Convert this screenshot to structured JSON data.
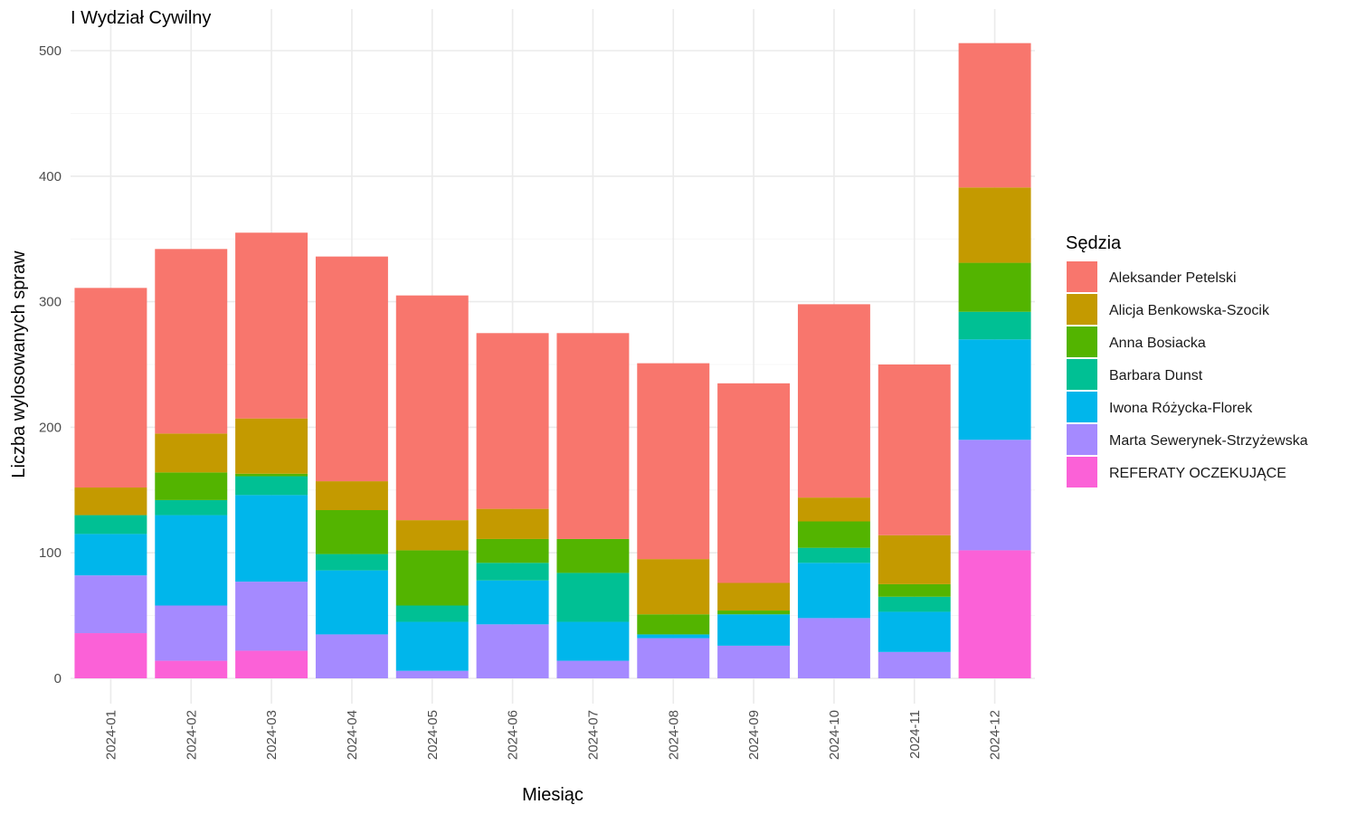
{
  "chart_data": {
    "type": "bar",
    "stacked": true,
    "title": "I Wydział Cywilny",
    "xlabel": "Miesiąc",
    "ylabel": "Liczba wylosowanych spraw",
    "ylim": [
      0,
      510
    ],
    "yticks": [
      0,
      100,
      200,
      300,
      400,
      500
    ],
    "grid": true,
    "legend_position": "right",
    "legend_title": "Sędzia",
    "categories": [
      "2024-01",
      "2024-02",
      "2024-03",
      "2024-04",
      "2024-05",
      "2024-06",
      "2024-07",
      "2024-08",
      "2024-09",
      "2024-10",
      "2024-11",
      "2024-12"
    ],
    "series": [
      {
        "name": "Aleksander Petelski",
        "color": "#F8766D",
        "values": [
          159,
          147,
          148,
          179,
          179,
          140,
          164,
          156,
          159,
          154,
          136,
          115
        ]
      },
      {
        "name": "Alicja Benkowska-Szocik",
        "color": "#C49A00",
        "values": [
          22,
          31,
          44,
          23,
          24,
          24,
          0,
          44,
          22,
          19,
          39,
          60
        ]
      },
      {
        "name": "Anna Bosiacka",
        "color": "#53B400",
        "values": [
          0,
          22,
          2,
          35,
          44,
          19,
          27,
          16,
          3,
          21,
          10,
          39
        ]
      },
      {
        "name": "Barbara Dunst",
        "color": "#00C094",
        "values": [
          15,
          12,
          15,
          13,
          13,
          14,
          39,
          0,
          0,
          12,
          12,
          22
        ]
      },
      {
        "name": "Iwona Różycka-Florek",
        "color": "#00B6EB",
        "values": [
          33,
          72,
          69,
          51,
          39,
          35,
          31,
          3,
          25,
          44,
          32,
          80
        ]
      },
      {
        "name": "Marta Sewerynek-Strzyżewska",
        "color": "#A58AFF",
        "values": [
          46,
          44,
          55,
          35,
          6,
          43,
          14,
          32,
          26,
          48,
          21,
          88
        ]
      },
      {
        "name": "REFERATY OCZEKUJĄCE",
        "color": "#FB61D7",
        "values": [
          36,
          14,
          22,
          0,
          0,
          0,
          0,
          0,
          0,
          0,
          0,
          102
        ]
      }
    ]
  }
}
